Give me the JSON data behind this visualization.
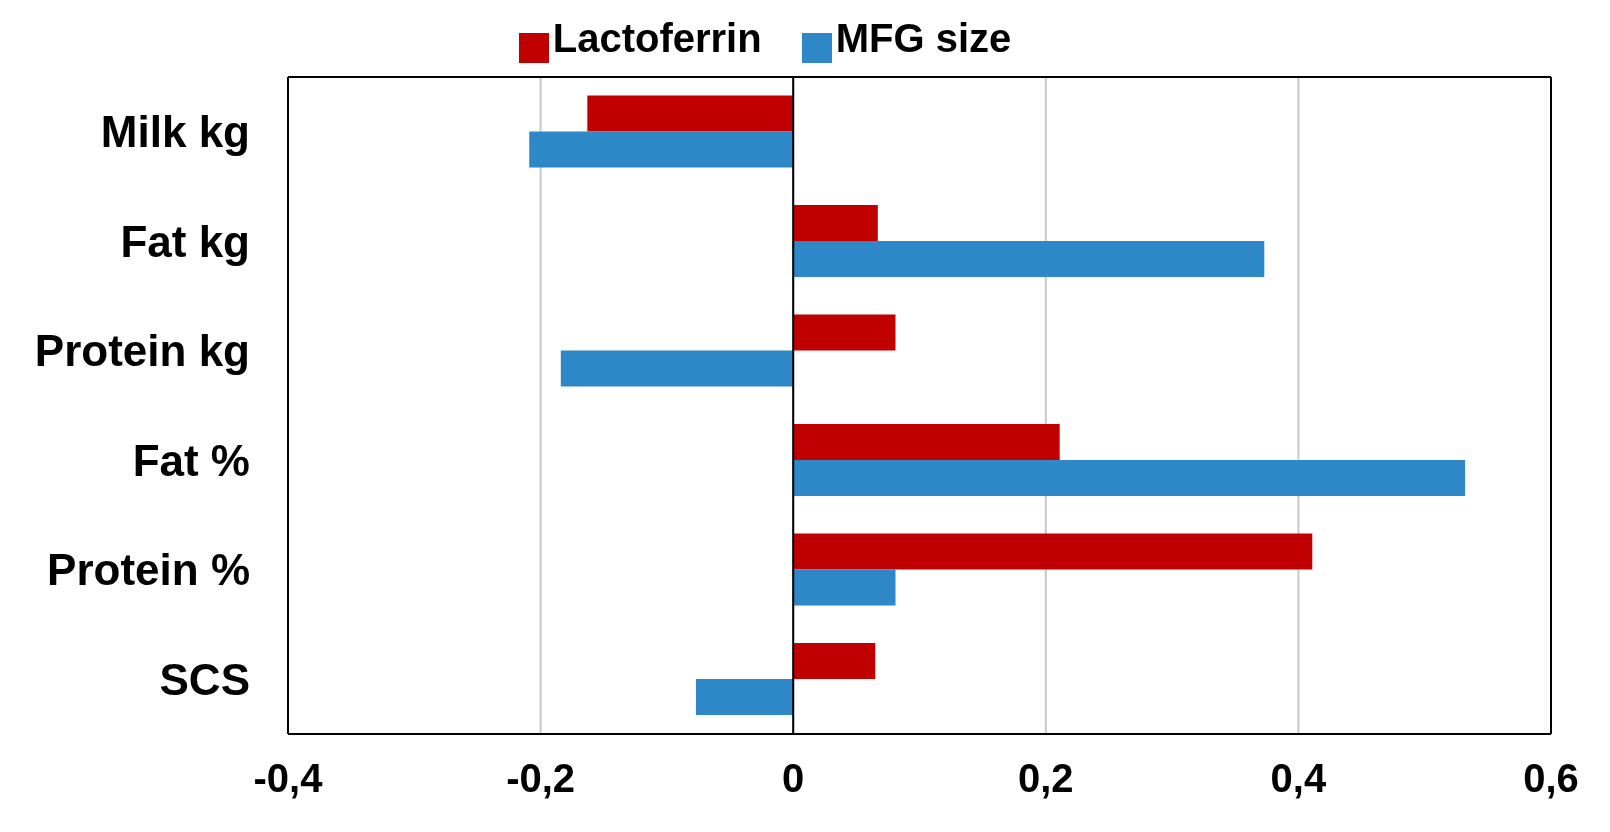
{
  "chart_data": {
    "type": "bar",
    "orientation": "horizontal",
    "categories": [
      "Milk kg",
      "Fat kg",
      "Protein kg",
      "Fat %",
      "Protein %",
      "SCS"
    ],
    "series": [
      {
        "name": "Lactoferrin",
        "color": "#c00000",
        "values": [
          -0.163,
          0.067,
          0.081,
          0.211,
          0.411,
          0.065
        ]
      },
      {
        "name": "MFG size",
        "color": "#2e88c8",
        "values": [
          -0.209,
          0.373,
          -0.184,
          0.532,
          0.081,
          -0.077
        ]
      }
    ],
    "xlim": [
      -0.4,
      0.6
    ],
    "xticks": [
      {
        "value": -0.4,
        "label": "-0,4"
      },
      {
        "value": -0.2,
        "label": "-0,2"
      },
      0,
      {
        "value": 0.2,
        "label": "0,2"
      },
      {
        "value": 0.4,
        "label": "0,4"
      },
      {
        "value": 0.6,
        "label": "0,6"
      }
    ],
    "grid": "x",
    "legend": "top"
  }
}
